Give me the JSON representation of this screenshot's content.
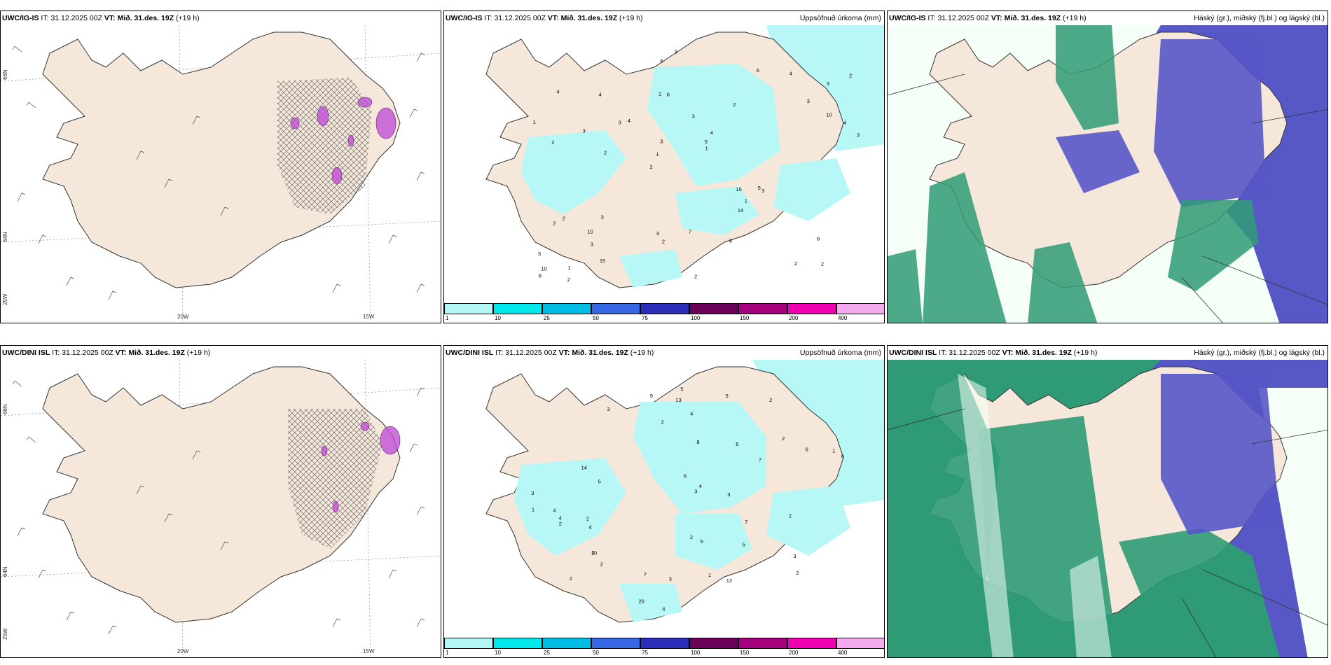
{
  "rows": [
    {
      "model": "UWC/IG-IS",
      "panels": [
        {
          "model": "UWC/IG-IS",
          "it_label": "IT:",
          "it_value": "31.12.2025 00Z",
          "vt_label": "VT:",
          "vt_value": "Mið. 31.des. 19Z",
          "lead": "(+19 h)",
          "right_title": ""
        },
        {
          "model": "UWC/IG-IS",
          "it_label": "IT:",
          "it_value": "31.12.2025 00Z",
          "vt_label": "VT:",
          "vt_value": "Mið. 31.des. 19Z",
          "lead": "(+19 h)",
          "right_title": "Uppsöfnuð úrkoma (mm)"
        },
        {
          "model": "UWC/IG-IS",
          "it_label": "IT:",
          "it_value": "31.12.2025 00Z",
          "vt_label": "VT:",
          "vt_value": "Mið. 31.des. 19Z",
          "lead": "(+19 h)",
          "right_title": "Háský (gr.), miðský (fj.bl.) og lágský (bl.)"
        }
      ],
      "precip_labels": [
        "2",
        "2",
        "3",
        "2",
        "2",
        "1",
        "2",
        "3",
        "2",
        "4",
        "3",
        "3",
        "6",
        "4",
        "3",
        "4",
        "4",
        "3",
        "15",
        "10",
        "1",
        "3",
        "3",
        "4",
        "6",
        "3",
        "2",
        "6",
        "5",
        "2",
        "3",
        "3",
        "14",
        "15",
        "4",
        "5",
        "10",
        "2",
        "1",
        "2",
        "3",
        "2",
        "1",
        "3",
        "10",
        "2",
        "6",
        "7",
        "4",
        "3",
        "2",
        "1"
      ]
    },
    {
      "model": "UWC/DINI ISL",
      "panels": [
        {
          "model": "UWC/DINI ISL",
          "it_label": "IT:",
          "it_value": "31.12.2025 00Z",
          "vt_label": "VT:",
          "vt_value": "Mið. 31.des. 19Z",
          "lead": "(+19 h)",
          "right_title": ""
        },
        {
          "model": "UWC/DINI ISL",
          "it_label": "IT:",
          "it_value": "31.12.2025 00Z",
          "vt_label": "VT:",
          "vt_value": "Mið. 31.des. 19Z",
          "lead": "(+19 h)",
          "right_title": "Uppsöfnuð úrkoma (mm)"
        },
        {
          "model": "UWC/DINI ISL",
          "it_label": "IT:",
          "it_value": "31.12.2025 00Z",
          "vt_label": "VT:",
          "vt_value": "Mið. 31.des. 19Z",
          "lead": "(+19 h)",
          "right_title": "Háský (gr.), miðský (fj.bl.) og lágský (bl.)"
        }
      ],
      "precip_labels": [
        "2",
        "2",
        "3",
        "2",
        "5",
        "5",
        "4",
        "2",
        "6",
        "7",
        "4",
        "5",
        "5",
        "3",
        "4",
        "9",
        "2",
        "3",
        "10",
        "20",
        "12",
        "13",
        "2",
        "4",
        "6",
        "7",
        "4",
        "5",
        "8",
        "7",
        "14",
        "2",
        "1",
        "2",
        "3",
        "2",
        "1",
        "3",
        "5",
        "2",
        "6",
        "4",
        "3",
        "2",
        "1"
      ]
    }
  ],
  "grid_labels": {
    "lon_20w": "20W",
    "lon_15w": "15W",
    "lat_66n": "66N",
    "lat_64n": "64N",
    "lon_25w": "25W"
  },
  "colorbar": {
    "labels": [
      "1",
      "10",
      "25",
      "50",
      "75",
      "100",
      "150",
      "200",
      "400"
    ],
    "colors": [
      "#b5f7f7",
      "#00e8ee",
      "#00bde6",
      "#3567e0",
      "#2a2db7",
      "#6b0059",
      "#a6007f",
      "#ef00b0",
      "#f6aaf0"
    ]
  },
  "colors": {
    "land": "#f5e8da",
    "precip_light": "#b7f8f7",
    "cloud_high": "#2f9b76",
    "cloud_mid": "#5857c6",
    "cloud_low": "#f5fff7",
    "overlay": "#c04fd6"
  }
}
